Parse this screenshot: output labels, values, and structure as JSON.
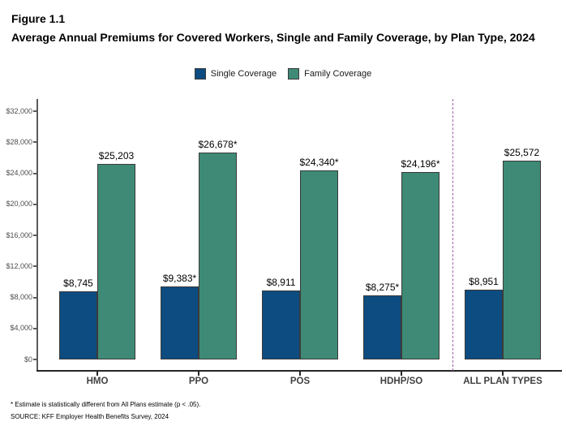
{
  "header": {
    "figure_label": "Figure 1.1",
    "title": "Average Annual Premiums for Covered Workers, Single and Family Coverage, by Plan Type, 2024"
  },
  "chart_data": {
    "type": "bar",
    "title": "Average Annual Premiums for Covered Workers, Single and Family Coverage, by Plan Type, 2024",
    "figure_label": "Figure 1.1",
    "categories": [
      "HMO",
      "PPO",
      "POS",
      "HDHP/SO",
      "ALL PLAN TYPES"
    ],
    "series": [
      {
        "name": "Single Coverage",
        "color": "#0d4c80",
        "values": [
          8745,
          9383,
          8911,
          8275,
          8951
        ],
        "labels": [
          "$8,745",
          "$9,383*",
          "$8,911",
          "$8,275*",
          "$8,951"
        ]
      },
      {
        "name": "Family Coverage",
        "color": "#3e8a76",
        "values": [
          25203,
          26678,
          24340,
          24196,
          25572
        ],
        "labels": [
          "$25,203",
          "$26,678*",
          "$24,340*",
          "$24,196*",
          "$25,572"
        ]
      }
    ],
    "xlabel": "",
    "ylabel": "",
    "ylim": [
      0,
      32000
    ],
    "ytick_step": 4000,
    "ytick_labels": [
      "$0",
      "$4,000",
      "$8,000",
      "$12,000",
      "$16,000",
      "$20,000",
      "$24,000",
      "$28,000",
      "$32,000"
    ],
    "grid": false,
    "legend_position": "top",
    "bar_border_color": "#3a3a3a",
    "separator": {
      "between": [
        "HDHP/SO",
        "ALL PLAN TYPES"
      ],
      "style": "dashed",
      "color": "#9d5fa5"
    }
  },
  "footnotes": [
    "* Estimate is statistically different from All Plans estimate (p < .05).",
    "SOURCE: KFF Employer Health Benefits Survey, 2024"
  ]
}
